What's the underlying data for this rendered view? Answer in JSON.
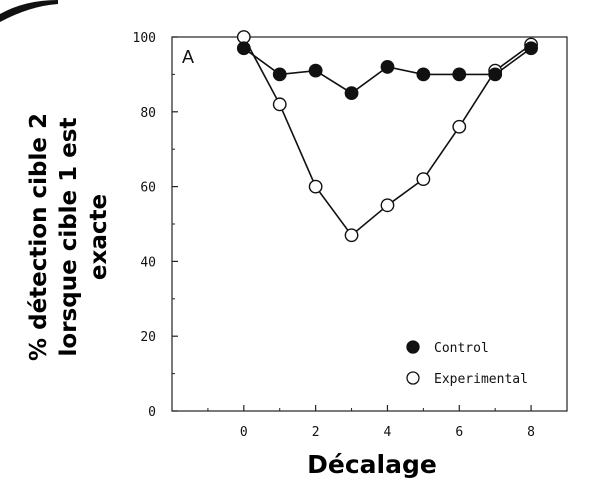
{
  "chart_data": {
    "type": "line",
    "panel_label": "A",
    "x": [
      0,
      1,
      2,
      3,
      4,
      5,
      6,
      7,
      8
    ],
    "series": [
      {
        "name": "Control",
        "marker": "filled-circle",
        "color": "#111111",
        "values": [
          97,
          90,
          91,
          85,
          92,
          90,
          90,
          90,
          97
        ]
      },
      {
        "name": "Experimental",
        "marker": "open-circle",
        "color": "#111111",
        "values": [
          100,
          82,
          60,
          47,
          55,
          62,
          76,
          91,
          98
        ]
      }
    ],
    "xlabel": "Décalage",
    "ylabel_lines": [
      "% détection cible 2",
      "lorsque cible 1 est",
      "exacte"
    ],
    "xlim": [
      -2,
      9
    ],
    "ylim": [
      0,
      100
    ],
    "xticks": [
      "0",
      "2",
      "4",
      "6",
      "8"
    ],
    "yticks": [
      "0",
      "20",
      "40",
      "60",
      "80",
      "100"
    ],
    "grid": false,
    "legend_position": "bottom-right"
  }
}
